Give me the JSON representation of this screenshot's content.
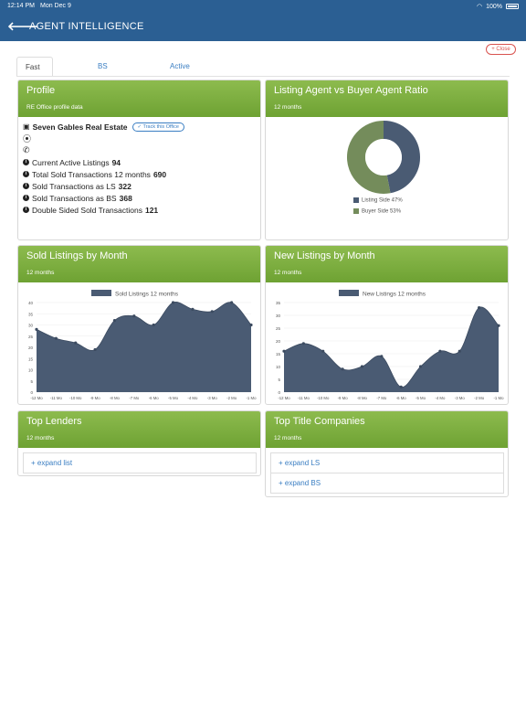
{
  "status_bar": {
    "time": "12:14 PM",
    "date": "Mon Dec 9",
    "battery": "100%"
  },
  "nav": {
    "back_glyph": "🡐",
    "title": "AGENT INTELLIGENCE"
  },
  "close_label": "+ Close",
  "tabs": [
    {
      "label": "Fast Facts"
    },
    {
      "label": "BS Agent Rank"
    },
    {
      "label": "Active Listings"
    }
  ],
  "profile": {
    "title": "Profile",
    "subtitle": "RE Office profile data",
    "office_name": "Seven Gables Real Estate",
    "track_label": "✓ Track this Office",
    "stats": [
      {
        "label": "Current Active Listings",
        "value": "94"
      },
      {
        "label": "Total Sold Transactions 12 months",
        "value": "690"
      },
      {
        "label": "Sold Transactions as LS",
        "value": "322"
      },
      {
        "label": "Sold Transactions as BS",
        "value": "368"
      },
      {
        "label": "Double Sided Sold Transactions",
        "value": "121"
      }
    ]
  },
  "ratio": {
    "title": "Listing Agent vs Buyer Agent Ratio",
    "subtitle": "12 months",
    "legend": [
      "Listing Side 47%",
      "Buyer Side 53%"
    ]
  },
  "sold_chart": {
    "title": "Sold Listings by Month",
    "subtitle": "12 months"
  },
  "new_chart": {
    "title": "New Listings by Month",
    "subtitle": "12 months"
  },
  "lenders": {
    "title": "Top Lenders",
    "subtitle": "12 months",
    "expand_label": "+ expand list"
  },
  "title_cos": {
    "title": "Top Title Companies",
    "subtitle": "12 months",
    "expand_ls": "+ expand LS",
    "expand_bs": "+ expand BS"
  },
  "colors": {
    "accent_blue": "#2b5f93",
    "header_green": "#7aad3e",
    "series_dark": "#4a5b73",
    "series_green": "#748c5b"
  },
  "chart_data": [
    {
      "type": "pie",
      "categories": [
        "Listing Side 47%",
        "Buyer Side 53%"
      ],
      "values": [
        47,
        53
      ],
      "colors": [
        "#4a5b73",
        "#748c5b"
      ]
    },
    {
      "type": "area",
      "legend": "Sold Listings 12 months",
      "categories": [
        "-12 Mo",
        "-11 Mo",
        "-10 Mo",
        "-9 Mo",
        "-8 Mo",
        "-7 Mo",
        "-6 Mo",
        "-5 Mo",
        "-4 Mo",
        "-3 Mo",
        "-2 Mo",
        "-1 Mo"
      ],
      "values": [
        28,
        24,
        22,
        19,
        32,
        34,
        30,
        40,
        37,
        36,
        40,
        30
      ],
      "ylim": [
        0,
        40
      ],
      "yticks": [
        0,
        5,
        10,
        15,
        20,
        25,
        30,
        35,
        40
      ]
    },
    {
      "type": "area",
      "legend": "New Listings 12 months",
      "categories": [
        "-12 Mo",
        "-11 Mo",
        "-10 Mo",
        "-9 Mo",
        "-8 Mo",
        "-7 Mo",
        "-6 Mo",
        "-5 Mo",
        "-4 Mo",
        "-3 Mo",
        "-2 Mo",
        "-1 Mo"
      ],
      "values": [
        16,
        19,
        16,
        9,
        10,
        14,
        2,
        10,
        16,
        16,
        33,
        26
      ],
      "ylim": [
        0,
        35
      ],
      "yticks": [
        0,
        5,
        10,
        15,
        20,
        25,
        30,
        35
      ]
    }
  ]
}
